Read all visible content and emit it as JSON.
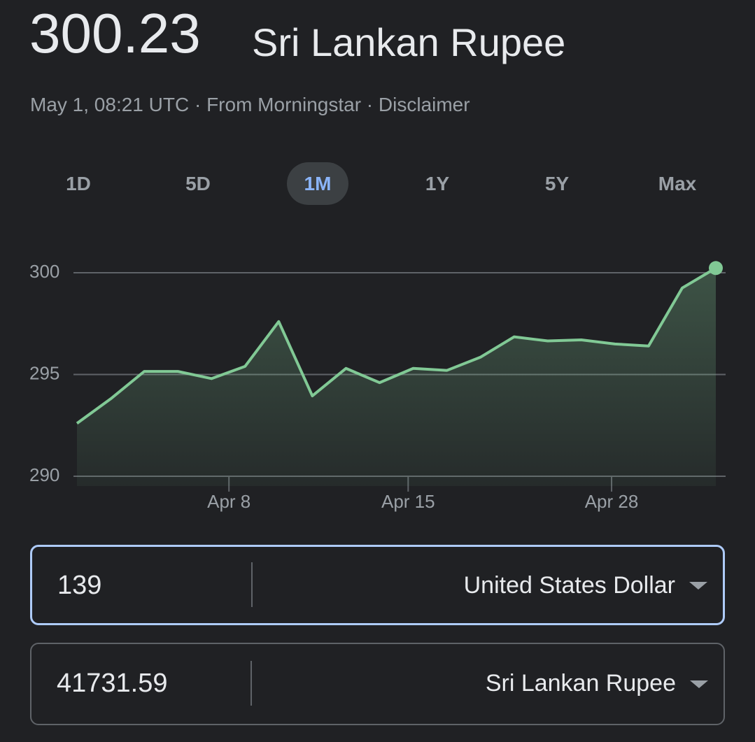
{
  "header": {
    "value": "300.23",
    "currency": "Sri Lankan Rupee",
    "meta": "May 1, 08:21 UTC · From Morningstar ·",
    "disclaimer": "Disclaimer"
  },
  "tabs": {
    "items": [
      "1D",
      "5D",
      "1M",
      "1Y",
      "5Y",
      "Max"
    ],
    "selected": 2
  },
  "chart_data": {
    "type": "line",
    "color": "#81c995",
    "values": [
      292.6,
      293.8,
      295.15,
      295.15,
      294.8,
      295.4,
      297.6,
      293.95,
      295.3,
      294.6,
      295.3,
      295.2,
      295.85,
      296.85,
      296.65,
      296.7,
      296.5,
      296.4,
      299.25,
      300.23
    ],
    "xlim": [
      0,
      19
    ],
    "xticks": [
      {
        "value": 4.52,
        "label": "Apr 8"
      },
      {
        "value": 9.85,
        "label": "Apr 15"
      },
      {
        "value": 15.9,
        "label": "Apr 28"
      }
    ],
    "ylim": [
      290,
      300
    ],
    "yticks": [
      290,
      295,
      300
    ],
    "grid": true
  },
  "converter": {
    "from": {
      "amount": "139",
      "currency": "United States Dollar"
    },
    "to": {
      "amount": "41731.59",
      "currency": "Sri Lankan Rupee"
    }
  }
}
